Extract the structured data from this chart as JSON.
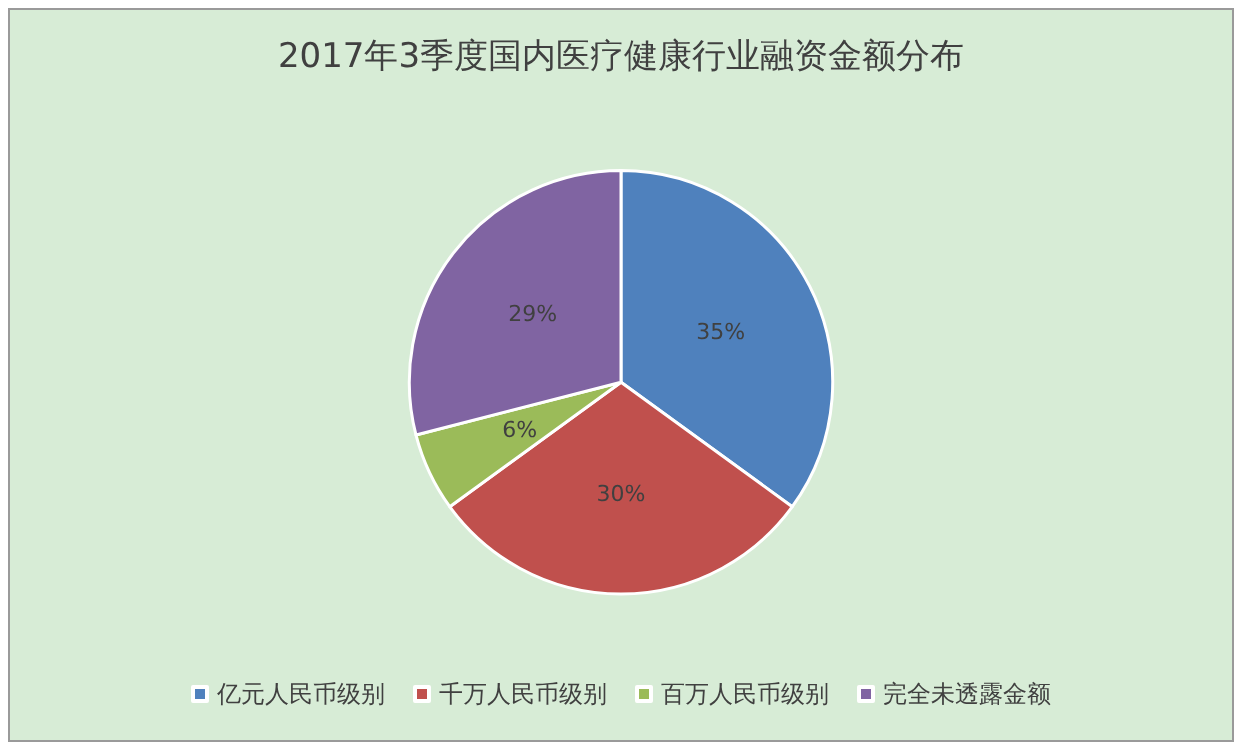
{
  "chart_data": {
    "type": "pie",
    "title": "2017年3季度国内医疗健康行业融资金额分布",
    "categories": [
      "亿元人民币级别",
      "千万人民币级别",
      "百万人民币级别",
      "完全未透露金额"
    ],
    "values": [
      35,
      30,
      6,
      29
    ],
    "colors": [
      "#4f81bd",
      "#c0504d",
      "#9bbb59",
      "#8064a2"
    ],
    "value_labels": [
      "35%",
      "30%",
      "6%",
      "29%"
    ],
    "legend": "bottom"
  }
}
